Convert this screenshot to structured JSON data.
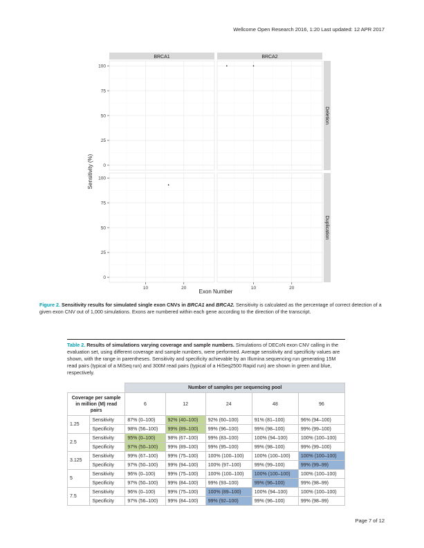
{
  "header": "Wellcome Open Research 2016, 1:20 Last updated: 12 APR 2017",
  "figure": {
    "chart_data": {
      "type": "scatter",
      "facets_columns": [
        "BRCA1",
        "BRCA2"
      ],
      "facets_rows": [
        "Deletion",
        "Duplication"
      ],
      "xlabel": "Exon Number",
      "ylabel": "Sensitivity (%)",
      "ylim": [
        -5,
        105
      ],
      "yticks": [
        0,
        25,
        50,
        75,
        100
      ],
      "xticks": [
        10,
        20
      ],
      "xlim": [
        0.5,
        28
      ],
      "grid": true,
      "points": [
        {
          "gene": "BRCA2",
          "type": "Deletion",
          "x": 3,
          "y": 100
        },
        {
          "gene": "BRCA2",
          "type": "Deletion",
          "x": 10,
          "y": 100
        },
        {
          "gene": "BRCA1",
          "type": "Duplication",
          "x": 16,
          "y": 93
        }
      ]
    }
  },
  "figure_caption": {
    "label": "Figure 2.",
    "title_pre": "Sensitivity results for simulated single exon CNVs in ",
    "gene1": "BRCA1",
    "and": " and ",
    "gene2": "BRCA2.",
    "text": " Sensitivity is calculated as the percentage of correct detection of a given exon CNV out of 1,000 simulations. Exons are numbered within each gene according to the direction of the transcript."
  },
  "table_caption": {
    "label": "Table 2.",
    "title": " Results of simulations varying coverage and sample numbers.",
    "text": " Simulations of DECoN exon CNV calling in the evaluation set, using different coverage and sample numbers, were performed. Average sensitivity and specificity values are shown, with the range in parentheses. Sensitivity and specificity achievable by an Illumina sequencing run generating 15M read pairs (typical of a MiSeq run) and 300M read pairs (typical of a HiSeq2500 Rapid run) are shown in green and blue, respectively."
  },
  "table": {
    "pool_header": "Number of samples per sequencing pool",
    "coverage_header": "Coverage per sample in million (M) read pairs",
    "columns": [
      "6",
      "12",
      "24",
      "48",
      "96"
    ],
    "rows": [
      {
        "coverage": "1.25",
        "metric": "Sensitivity",
        "cells": [
          [
            "87% (0–100)",
            ""
          ],
          [
            "92% (40–100)",
            "g"
          ],
          [
            "92% (60–100)",
            ""
          ],
          [
            "91% (81–100)",
            ""
          ],
          [
            "96% (94–100)",
            ""
          ]
        ]
      },
      {
        "coverage": "",
        "metric": "Specificity",
        "cells": [
          [
            "98% (56–100)",
            ""
          ],
          [
            "99% (89–100)",
            "g"
          ],
          [
            "99% (96–100)",
            ""
          ],
          [
            "99% (98–100)",
            ""
          ],
          [
            "99% (99–100)",
            ""
          ]
        ]
      },
      {
        "coverage": "2.5",
        "metric": "Sensitivity",
        "cells": [
          [
            "95% (0–100)",
            "g"
          ],
          [
            "98% (67–100)",
            ""
          ],
          [
            "99% (83–100)",
            ""
          ],
          [
            "100% (94–100)",
            ""
          ],
          [
            "100% (100–100)",
            ""
          ]
        ]
      },
      {
        "coverage": "",
        "metric": "Specificity",
        "cells": [
          [
            "97% (50–100)",
            "g"
          ],
          [
            "99% (89–100)",
            ""
          ],
          [
            "99% (95–100)",
            ""
          ],
          [
            "99% (98–100)",
            ""
          ],
          [
            "99% (99–100)",
            ""
          ]
        ]
      },
      {
        "coverage": "3.125",
        "metric": "Sensitivity",
        "cells": [
          [
            "99% (67–100)",
            ""
          ],
          [
            "99% (75–100)",
            ""
          ],
          [
            "100% (100–100)",
            ""
          ],
          [
            "100% (100–100)",
            ""
          ],
          [
            "100% (100–100)",
            "b"
          ]
        ]
      },
      {
        "coverage": "",
        "metric": "Specificity",
        "cells": [
          [
            "97% (50–100)",
            ""
          ],
          [
            "99% (94–100)",
            ""
          ],
          [
            "100% (97–100)",
            ""
          ],
          [
            "99% (99–100)",
            ""
          ],
          [
            "99% (99–99)",
            "b"
          ]
        ]
      },
      {
        "coverage": "5",
        "metric": "Sensitivity",
        "cells": [
          [
            "96% (0–100)",
            ""
          ],
          [
            "99% (75–100)",
            ""
          ],
          [
            "100% (100–100)",
            ""
          ],
          [
            "100% (100–100)",
            "b"
          ],
          [
            "100% (100–100)",
            ""
          ]
        ]
      },
      {
        "coverage": "",
        "metric": "Specificity",
        "cells": [
          [
            "97% (50–100)",
            ""
          ],
          [
            "99% (84–100)",
            ""
          ],
          [
            "99% (93–100)",
            ""
          ],
          [
            "99% (96–100)",
            "b"
          ],
          [
            "99% (98–99)",
            ""
          ]
        ]
      },
      {
        "coverage": "7.5",
        "metric": "Sensitivity",
        "cells": [
          [
            "96% (0–100)",
            ""
          ],
          [
            "99% (75–100)",
            ""
          ],
          [
            "100% (89–100)",
            "b"
          ],
          [
            "100% (94–100)",
            ""
          ],
          [
            "100% (100–100)",
            ""
          ]
        ]
      },
      {
        "coverage": "",
        "metric": "Specificity",
        "cells": [
          [
            "97% (56–100)",
            ""
          ],
          [
            "99% (84–100)",
            ""
          ],
          [
            "99% (92–100)",
            "b"
          ],
          [
            "99% (96–100)",
            ""
          ],
          [
            "99% (98–99)",
            ""
          ]
        ]
      }
    ]
  },
  "footer": "Page 7 of 12"
}
